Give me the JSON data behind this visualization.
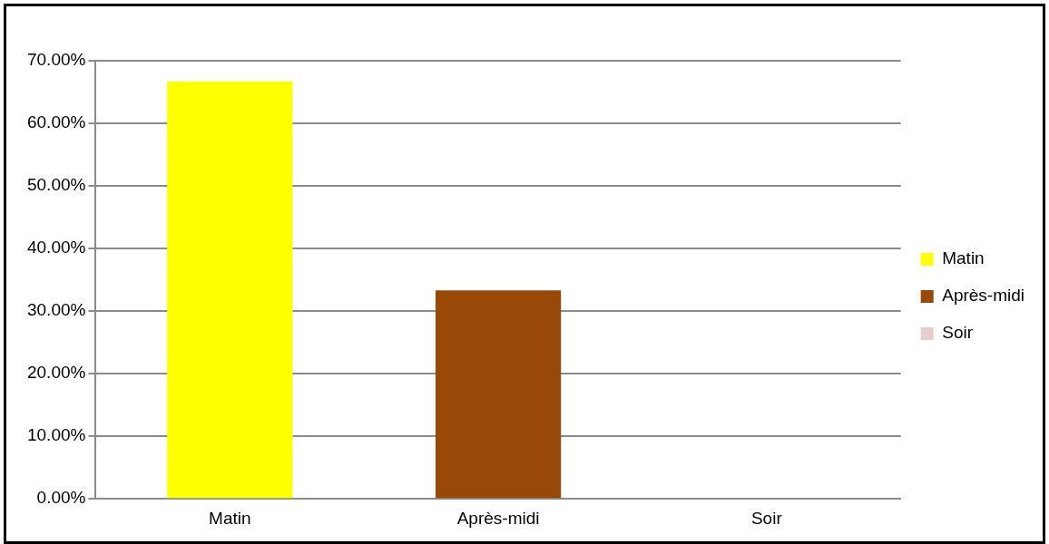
{
  "chart_data": {
    "type": "bar",
    "categories": [
      "Matin",
      "Après-midi",
      "Soir"
    ],
    "series": [
      {
        "name": "Matin",
        "color": "#ffff00",
        "values": [
          66.7,
          null,
          null
        ]
      },
      {
        "name": "Après-midi",
        "color": "#984807",
        "values": [
          null,
          33.3,
          null
        ]
      },
      {
        "name": "Soir",
        "color": "#e6cfcf",
        "values": [
          null,
          null,
          0
        ]
      }
    ],
    "ylim": [
      0,
      70
    ],
    "yticks": [
      {
        "value": 0,
        "label": "0.00%"
      },
      {
        "value": 10,
        "label": "10.00%"
      },
      {
        "value": 20,
        "label": "20.00%"
      },
      {
        "value": 30,
        "label": "30.00%"
      },
      {
        "value": 40,
        "label": "40.00%"
      },
      {
        "value": 50,
        "label": "50.00%"
      },
      {
        "value": 60,
        "label": "60.00%"
      },
      {
        "value": 70,
        "label": "70.00%"
      }
    ],
    "grid": "y",
    "legend": "right"
  }
}
